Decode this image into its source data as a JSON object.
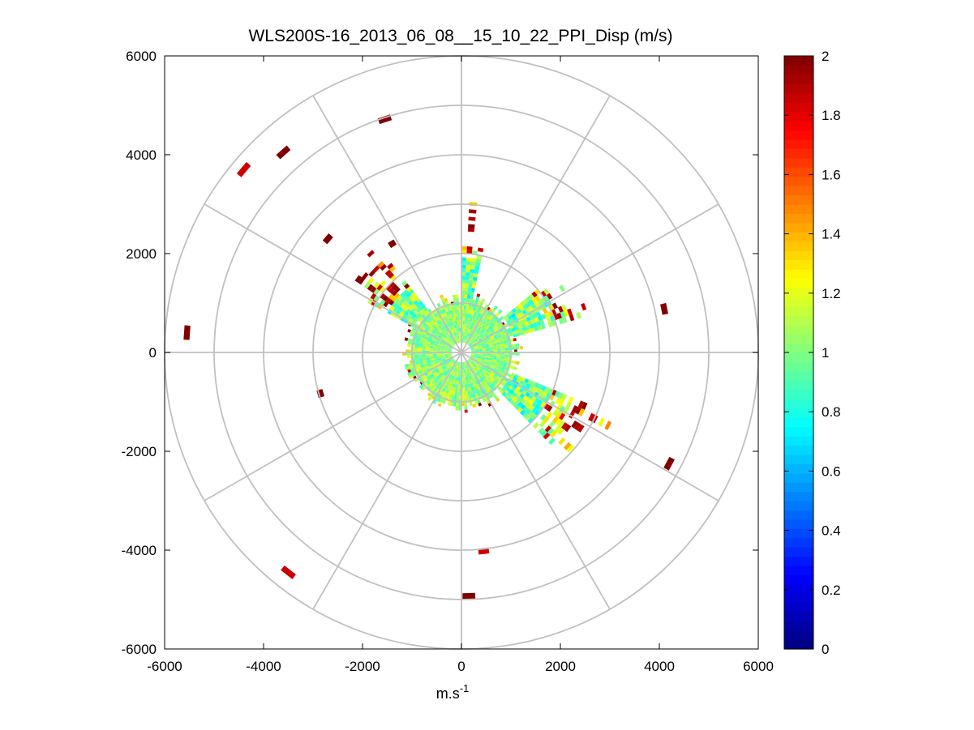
{
  "chart_data": {
    "type": "heatmap",
    "subtype": "polar-ppi",
    "title": "WLS200S-16_2013_06_08__15_10_22_PPI_Disp (m/s)",
    "xlabel": "m.s",
    "xlabel_superscript": "-1",
    "ylabel": "",
    "xlim": [
      -6000,
      6000
    ],
    "ylim": [
      -6000,
      6000
    ],
    "xticks": [
      -6000,
      -4000,
      -2000,
      0,
      2000,
      4000,
      6000
    ],
    "yticks": [
      6000,
      4000,
      2000,
      0,
      -2000,
      -4000,
      -6000
    ],
    "polar_grid": {
      "rings": [
        1000,
        2000,
        3000,
        4000,
        5000,
        6000
      ],
      "spoke_angles_deg": [
        0,
        30,
        60,
        90,
        120,
        150,
        180,
        210,
        240,
        270,
        300,
        330
      ]
    },
    "colorbar": {
      "range": [
        0,
        2
      ],
      "ticks": [
        0,
        0.2,
        0.4,
        0.6,
        0.8,
        1,
        1.2,
        1.4,
        1.6,
        1.8,
        2
      ],
      "colormap": "jet",
      "levels": 64
    },
    "core_region": {
      "radius_range": [
        200,
        1100
      ],
      "value_range": [
        0.85,
        1.2
      ]
    },
    "sectors": [
      {
        "name": "north",
        "az_range_deg": [
          0,
          12
        ],
        "radius_range": [
          1100,
          3300
        ]
      },
      {
        "name": "north-east",
        "az_range_deg": [
          50,
          72
        ],
        "radius_range": [
          1100,
          3000
        ]
      },
      {
        "name": "north-west",
        "az_range_deg": [
          298,
          320
        ],
        "radius_range": [
          1100,
          2800
        ]
      },
      {
        "name": "south-east",
        "az_range_deg": [
          112,
          135
        ],
        "radius_range": [
          1100,
          3500
        ]
      }
    ],
    "isolated_returns": [
      {
        "x": -5550,
        "y": 400,
        "v": 2
      },
      {
        "x": -4400,
        "y": 3700,
        "v": 1.85
      },
      {
        "x": -3600,
        "y": 4050,
        "v": 2
      },
      {
        "x": -1550,
        "y": 4720,
        "v": 2
      },
      {
        "x": -2850,
        "y": -830,
        "v": 2
      },
      {
        "x": 4100,
        "y": 880,
        "v": 2
      },
      {
        "x": 4200,
        "y": -2250,
        "v": 2
      },
      {
        "x": -3500,
        "y": -4450,
        "v": 1.85
      },
      {
        "x": 450,
        "y": -4020,
        "v": 1.85
      },
      {
        "x": 150,
        "y": -4930,
        "v": 2
      },
      {
        "x": -1400,
        "y": 2200,
        "v": 2
      },
      {
        "x": -2700,
        "y": 2300,
        "v": 2
      }
    ]
  }
}
